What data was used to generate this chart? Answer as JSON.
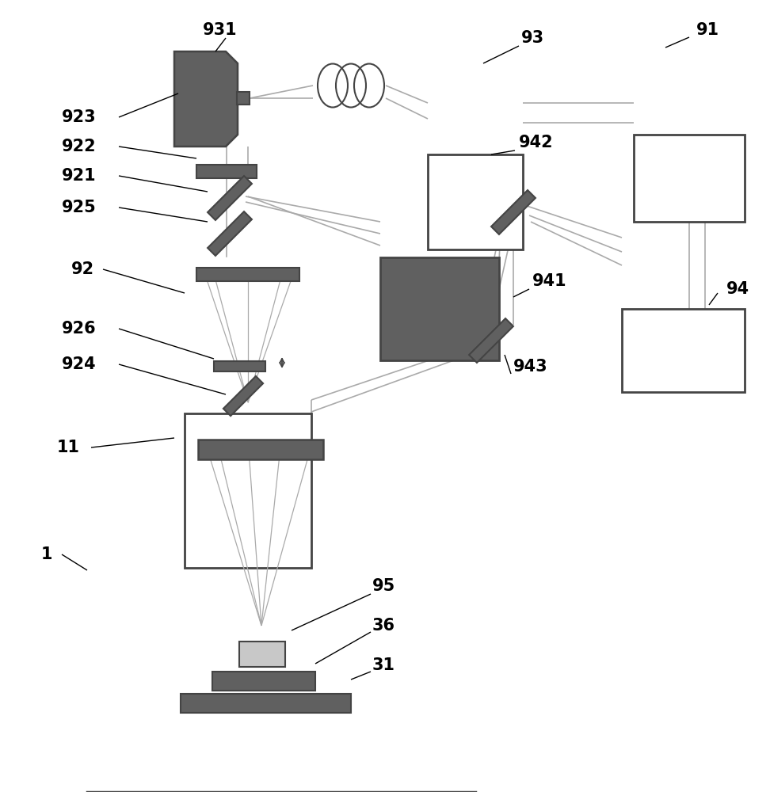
{
  "bg": "#ffffff",
  "dark_gray": "#606060",
  "mid_gray": "#808080",
  "light_gray": "#c8c8c8",
  "edge_color": "#444444",
  "line_color": "#aaaaaa",
  "text_color": "#000000",
  "fs": 15
}
